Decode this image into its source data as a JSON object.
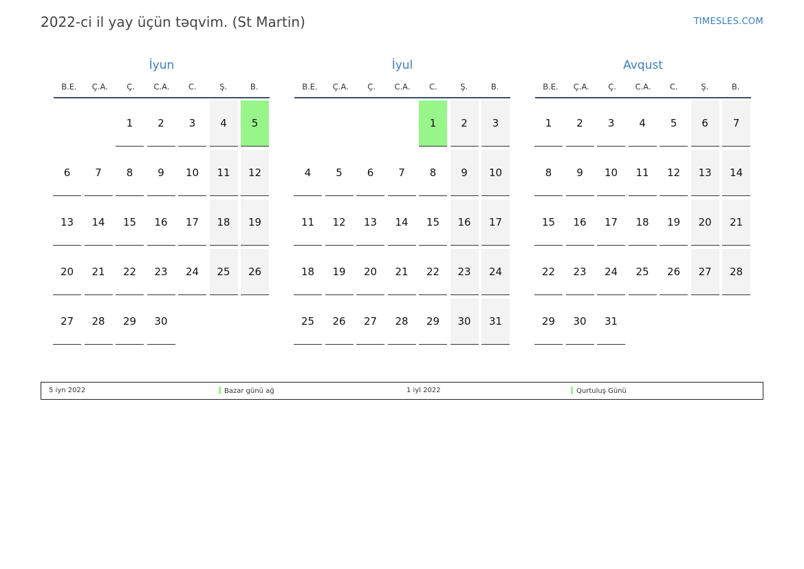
{
  "header": {
    "title": "2022-ci il yay üçün təqvim. (St Martin)",
    "brand": "TIMESLES.COM"
  },
  "colors": {
    "accent": "#3a7ebf",
    "holiday": "#98f58a",
    "weekend": "#f3f3f3"
  },
  "weekdays": [
    "B.E.",
    "Ç.A.",
    "Ç.",
    "C.A.",
    "C.",
    "Ş.",
    "B."
  ],
  "months": [
    {
      "name": "İyun",
      "offset": 2,
      "days": [
        "1",
        "2",
        "3",
        "4",
        "5",
        "6",
        "7",
        "8",
        "9",
        "10",
        "11",
        "12",
        "13",
        "14",
        "15",
        "16",
        "17",
        "18",
        "19",
        "20",
        "21",
        "22",
        "23",
        "24",
        "25",
        "26",
        "27",
        "28",
        "29",
        "30"
      ],
      "holidays": [
        "5"
      ]
    },
    {
      "name": "İyul",
      "offset": 4,
      "days": [
        "1",
        "2",
        "3",
        "4",
        "5",
        "6",
        "7",
        "8",
        "9",
        "10",
        "11",
        "12",
        "13",
        "14",
        "15",
        "16",
        "17",
        "18",
        "19",
        "20",
        "21",
        "22",
        "23",
        "24",
        "25",
        "26",
        "27",
        "28",
        "29",
        "30",
        "31"
      ],
      "holidays": [
        "1"
      ]
    },
    {
      "name": "Avqust",
      "offset": 0,
      "days": [
        "1",
        "2",
        "3",
        "4",
        "5",
        "6",
        "7",
        "8",
        "9",
        "10",
        "11",
        "12",
        "13",
        "14",
        "15",
        "16",
        "17",
        "18",
        "19",
        "20",
        "21",
        "22",
        "23",
        "24",
        "25",
        "26",
        "27",
        "28",
        "29",
        "30",
        "31"
      ],
      "holidays": []
    }
  ],
  "legend": [
    {
      "date": "5 iyn 2022",
      "name": "Bazar günü ağ"
    },
    {
      "date": "1 iyl 2022",
      "name": "Qurtuluş Günü"
    }
  ]
}
